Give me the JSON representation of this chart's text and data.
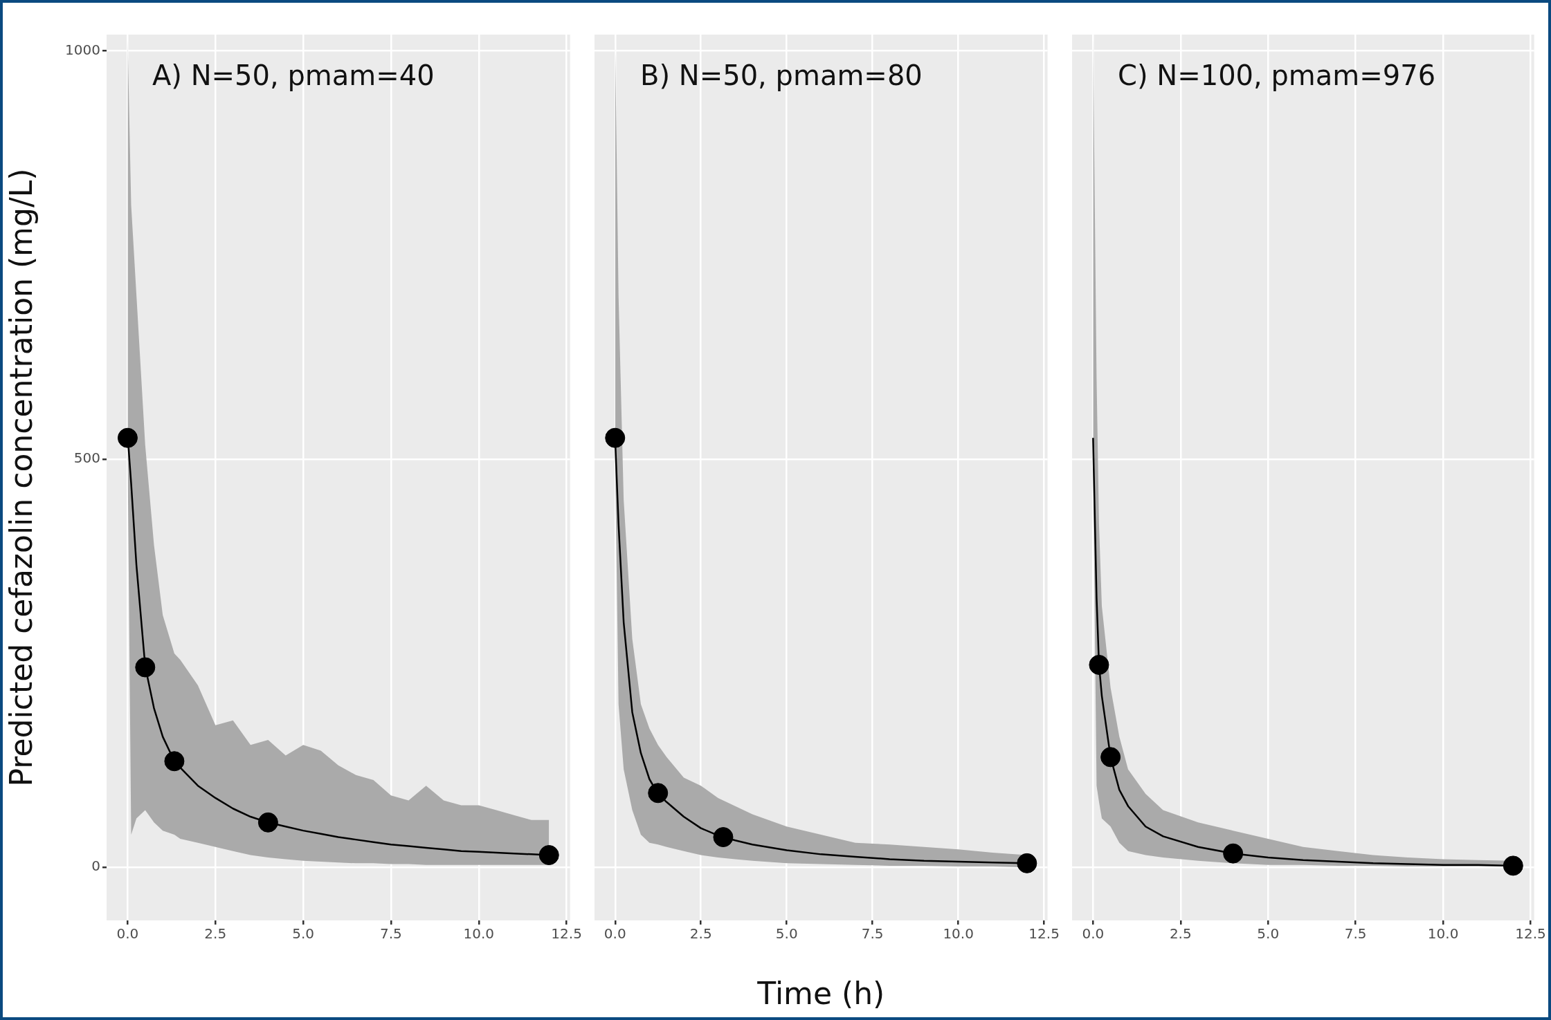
{
  "chart_data": [
    {
      "type": "line",
      "title": "A) N=50, pmam=40",
      "ylabel": "Predicted cefazolin concentration (mg/L)",
      "xlim": [
        -0.6,
        12.6
      ],
      "ylim": [
        -65,
        1020
      ],
      "xticks": [
        {
          "value": 0,
          "label": "0.0"
        },
        {
          "value": 2.5,
          "label": "2.5"
        },
        {
          "value": 5,
          "label": "5.0"
        },
        {
          "value": 7.5,
          "label": "7.5"
        },
        {
          "value": 10,
          "label": "10.0"
        },
        {
          "value": 12.5,
          "label": "12.5"
        }
      ],
      "yticks": [
        0,
        500,
        1000
      ],
      "grid": true,
      "series": [
        {
          "type": "line",
          "color": "#000000",
          "x": [
            0,
            0.1,
            0.25,
            0.5,
            0.75,
            1,
            1.33,
            1.5,
            2,
            2.5,
            3,
            3.5,
            4,
            4.5,
            5,
            5.5,
            6,
            6.5,
            7,
            7.5,
            8,
            8.5,
            9,
            9.5,
            10,
            10.5,
            11,
            11.5,
            12
          ],
          "values": [
            529,
            470,
            370,
            246,
            195,
            160,
            130,
            122,
            100,
            85,
            72,
            62,
            55,
            50,
            45,
            41,
            37,
            34,
            31,
            28,
            26,
            24,
            22,
            20,
            19,
            18,
            17,
            16,
            15
          ],
          "upper": [
            1015,
            811,
            701,
            517,
            395,
            309,
            262,
            254,
            223,
            174,
            180,
            150,
            156,
            137,
            150,
            143,
            125,
            113,
            107,
            88,
            82,
            100,
            82,
            76,
            76,
            70,
            64,
            58,
            58
          ],
          "lower": [
            500,
            40,
            60,
            70,
            55,
            45,
            40,
            35,
            30,
            25,
            20,
            15,
            12,
            10,
            8,
            7,
            6,
            5,
            5,
            4,
            4,
            3,
            3,
            3,
            3,
            3,
            3,
            3,
            3
          ]
        },
        {
          "type": "scatter",
          "color": "#000000",
          "marker": "circle",
          "x": [
            0,
            0.5,
            1.33,
            4,
            12
          ],
          "values": [
            526,
            245,
            130,
            55,
            15
          ]
        }
      ]
    },
    {
      "type": "line",
      "title": "B) N=50, pmam=80",
      "xlabel": "Time (h)",
      "xlim": [
        -0.6,
        12.6
      ],
      "ylim": [
        -65,
        1020
      ],
      "xticks": [
        {
          "value": 0,
          "label": "0.0"
        },
        {
          "value": 2.5,
          "label": "2.5"
        },
        {
          "value": 5,
          "label": "5.0"
        },
        {
          "value": 7.5,
          "label": "7.5"
        },
        {
          "value": 10,
          "label": "10.0"
        },
        {
          "value": 12.5,
          "label": "12.5"
        }
      ],
      "yticks": [
        0,
        500,
        1000
      ],
      "grid": true,
      "tick_labels": "x",
      "series": [
        {
          "type": "line",
          "color": "#000000",
          "x": [
            0,
            0.1,
            0.25,
            0.5,
            0.75,
            1,
            1.25,
            1.5,
            2,
            2.5,
            3,
            3.5,
            4,
            5,
            6,
            7,
            8,
            9,
            10,
            11,
            12
          ],
          "values": [
            526,
            420,
            300,
            190,
            140,
            108,
            90,
            80,
            62,
            48,
            39,
            33,
            28,
            21,
            16,
            13,
            10,
            8,
            7,
            6,
            5
          ],
          "upper": [
            1015,
            700,
            450,
            280,
            200,
            170,
            150,
            135,
            110,
            100,
            85,
            75,
            65,
            50,
            40,
            30,
            28,
            25,
            22,
            18,
            15
          ],
          "lower": [
            500,
            200,
            120,
            70,
            40,
            30,
            28,
            25,
            20,
            15,
            12,
            10,
            8,
            5,
            4,
            3,
            2,
            2,
            1,
            1,
            0
          ]
        },
        {
          "type": "scatter",
          "color": "#000000",
          "marker": "circle",
          "x": [
            0,
            1.25,
            3.15,
            12
          ],
          "values": [
            526,
            91,
            37,
            5
          ]
        }
      ]
    },
    {
      "type": "line",
      "title": "C) N=100, pmam=976",
      "xlim": [
        -0.6,
        12.6
      ],
      "ylim": [
        -65,
        1020
      ],
      "xticks": [
        {
          "value": 0,
          "label": "0.0"
        },
        {
          "value": 2.5,
          "label": "2.5"
        },
        {
          "value": 5,
          "label": "5.0"
        },
        {
          "value": 7.5,
          "label": "7.5"
        },
        {
          "value": 10,
          "label": "10.0"
        },
        {
          "value": 12.5,
          "label": "12.5"
        }
      ],
      "yticks": [
        0,
        500,
        1000
      ],
      "grid": true,
      "tick_labels": "x",
      "series": [
        {
          "type": "line",
          "color": "#000000",
          "x": [
            0,
            0.1,
            0.17,
            0.25,
            0.5,
            0.75,
            1,
            1.5,
            2,
            3,
            4,
            5,
            6,
            7,
            8,
            9,
            10,
            11,
            12
          ],
          "values": [
            526,
            330,
            248,
            210,
            135,
            95,
            75,
            50,
            38,
            25,
            17,
            12,
            9,
            7,
            5,
            4,
            3,
            3,
            2
          ],
          "upper": [
            1015,
            600,
            420,
            320,
            220,
            160,
            120,
            90,
            70,
            55,
            45,
            35,
            25,
            20,
            15,
            12,
            10,
            9,
            8
          ],
          "lower": [
            500,
            100,
            80,
            60,
            50,
            30,
            20,
            15,
            12,
            8,
            5,
            3,
            3,
            2,
            2,
            1,
            1,
            1,
            1
          ]
        },
        {
          "type": "scatter",
          "color": "#000000",
          "marker": "circle",
          "x": [
            0.17,
            0.5,
            4,
            12
          ],
          "values": [
            248,
            135,
            17,
            2
          ]
        }
      ]
    }
  ]
}
